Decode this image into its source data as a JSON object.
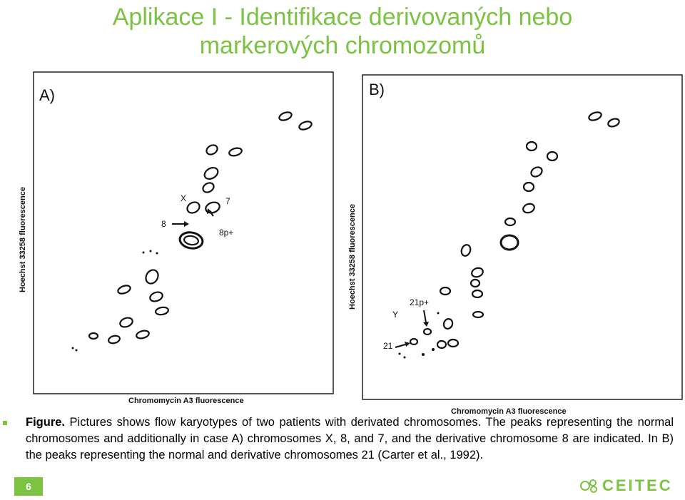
{
  "title": {
    "line1": "Aplikace I - Identifikace derivovaných nebo",
    "line2": "markerových chromozomů"
  },
  "panel_a": {
    "label": "A)",
    "ylabel": "Hoechst 33258 fluorescence",
    "xlabel": "Chromomycin A3 fluorescence",
    "annotations": [
      "X",
      "7",
      "8",
      "8p+"
    ]
  },
  "panel_b": {
    "label": "B)",
    "ylabel": "Hoechst 33258 fluorescence",
    "xlabel": "Chromomycin A3 fluorescence",
    "annotations": [
      "21p+",
      "Y",
      "21"
    ]
  },
  "caption": {
    "bold": "Figure.",
    "text": " Pictures shows flow karyotypes of two patients with derivated chromosomes. The peaks representing the normal chromosomes and additionally in case A) chromosomes X, 8, and 7, and the derivative chromosome 8 are indicated. In B) the peaks representing the normal and derivative chromosomes 21 (Carter et al., 1992)."
  },
  "page_number": "6",
  "logo_text": "CEITEC",
  "colors": {
    "accent": "#7cc243"
  }
}
